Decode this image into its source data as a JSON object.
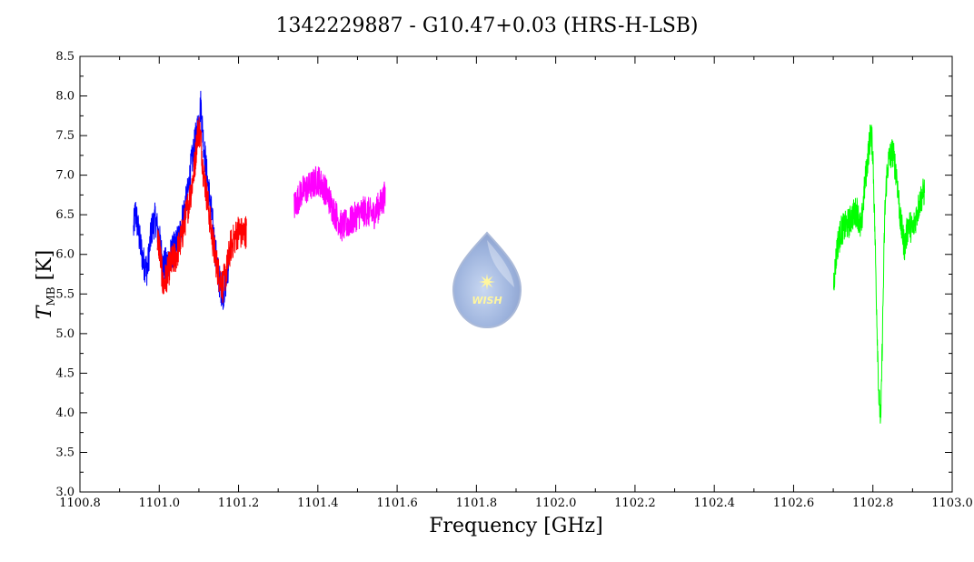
{
  "chart_data": {
    "type": "line",
    "title": "1342229887 - G10.47+0.03 (HRS-H-LSB)",
    "xlabel": "Frequency [GHz]",
    "ylabel": {
      "var": "T",
      "sub": "MB",
      "unit": "[K]"
    },
    "xlim": [
      1100.8,
      1103.0
    ],
    "ylim": [
      3.0,
      8.5
    ],
    "xticks": [
      "1100.8",
      "1101.0",
      "1101.2",
      "1101.4",
      "1101.6",
      "1101.8",
      "1102.0",
      "1102.2",
      "1102.4",
      "1102.6",
      "1102.8",
      "1103.0"
    ],
    "yticks": [
      "3.0",
      "3.5",
      "4.0",
      "4.5",
      "5.0",
      "5.5",
      "6.0",
      "6.5",
      "7.0",
      "7.5",
      "8.0",
      "8.5"
    ],
    "grid": false,
    "logo_text": "WISH",
    "series": [
      {
        "color": "#0000ff",
        "x": [
          1100.935,
          1100.94,
          1100.95,
          1100.96,
          1100.97,
          1100.98,
          1100.99,
          1101.0,
          1101.01,
          1101.02,
          1101.03,
          1101.04,
          1101.05,
          1101.06,
          1101.07,
          1101.08,
          1101.09,
          1101.1,
          1101.105,
          1101.11,
          1101.12,
          1101.13,
          1101.14,
          1101.15,
          1101.16,
          1101.17,
          1101.175
        ],
        "y": [
          6.3,
          6.55,
          6.2,
          5.9,
          5.8,
          6.3,
          6.45,
          6.2,
          5.85,
          5.9,
          6.0,
          6.1,
          6.2,
          6.5,
          6.7,
          7.1,
          7.4,
          7.7,
          7.9,
          7.5,
          7.0,
          6.6,
          6.1,
          5.7,
          5.5,
          5.7,
          5.9
        ],
        "noise": 0.22
      },
      {
        "color": "#ff0000",
        "x": [
          1100.995,
          1101.0,
          1101.01,
          1101.02,
          1101.03,
          1101.04,
          1101.05,
          1101.06,
          1101.07,
          1101.08,
          1101.09,
          1101.095,
          1101.1,
          1101.105,
          1101.11,
          1101.12,
          1101.13,
          1101.14,
          1101.15,
          1101.16,
          1101.17,
          1101.18,
          1101.19,
          1101.2,
          1101.21,
          1101.22
        ],
        "y": [
          6.2,
          6.1,
          5.6,
          5.75,
          5.9,
          5.95,
          6.1,
          6.3,
          6.55,
          6.8,
          7.15,
          7.45,
          7.6,
          7.45,
          7.1,
          6.75,
          6.35,
          6.0,
          5.75,
          5.6,
          5.8,
          6.1,
          6.2,
          6.3,
          6.25,
          6.3
        ],
        "noise": 0.22
      },
      {
        "color": "#ff00ff",
        "x": [
          1101.34,
          1101.36,
          1101.38,
          1101.4,
          1101.42,
          1101.44,
          1101.46,
          1101.48,
          1101.5,
          1101.52,
          1101.54,
          1101.56,
          1101.57
        ],
        "y": [
          6.6,
          6.8,
          6.85,
          6.95,
          6.8,
          6.55,
          6.35,
          6.4,
          6.5,
          6.55,
          6.5,
          6.65,
          6.75
        ],
        "noise": 0.2
      },
      {
        "color": "#00ff00",
        "x": [
          1102.7,
          1102.71,
          1102.72,
          1102.73,
          1102.74,
          1102.75,
          1102.76,
          1102.77,
          1102.78,
          1102.79,
          1102.795,
          1102.8,
          1102.805,
          1102.81,
          1102.815,
          1102.82,
          1102.825,
          1102.83,
          1102.835,
          1102.84,
          1102.85,
          1102.86,
          1102.87,
          1102.88,
          1102.89,
          1102.9,
          1102.91,
          1102.92,
          1102.93
        ],
        "y": [
          5.6,
          6.1,
          6.3,
          6.35,
          6.4,
          6.5,
          6.55,
          6.3,
          6.9,
          7.35,
          7.55,
          7.3,
          6.3,
          5.2,
          4.2,
          3.9,
          5.2,
          6.5,
          7.0,
          7.2,
          7.3,
          7.0,
          6.4,
          6.1,
          6.4,
          6.3,
          6.5,
          6.7,
          6.8
        ],
        "noise": 0.2
      }
    ]
  }
}
